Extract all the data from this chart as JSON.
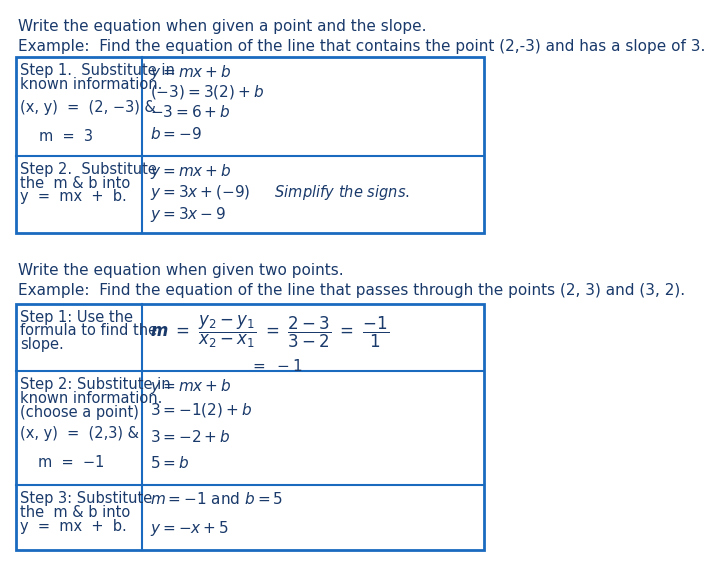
{
  "bg_color": "#ffffff",
  "text_color": "#1a3a6b",
  "border_color": "#1a6abf",
  "heading1": "Write the equation when given a point and the slope.",
  "example1": "Example:  Find the equation of the line that contains the point (2,-3) and has a slope of 3.",
  "heading2": "Write the equation when given two points.",
  "example2": "Example:  Find the equation of the line that passes through the points (2, 3) and (3, 2)."
}
